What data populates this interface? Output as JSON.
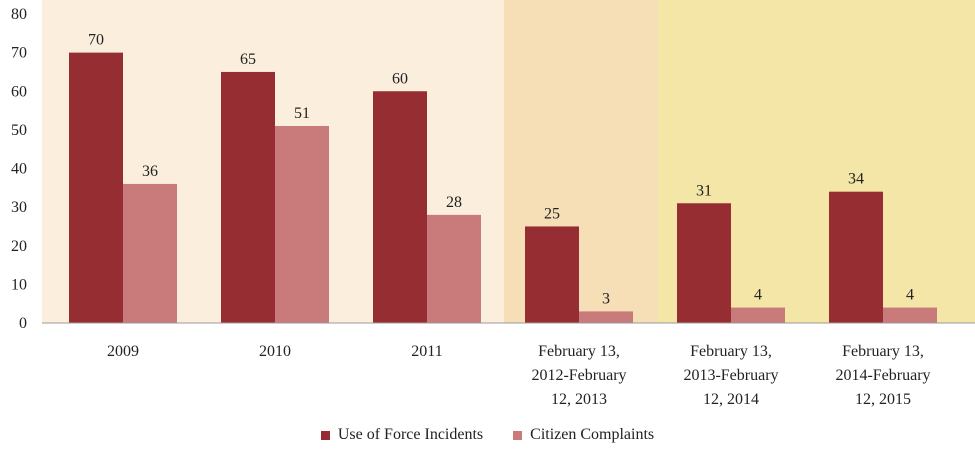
{
  "chart_data": {
    "type": "bar",
    "categories": [
      [
        "2009"
      ],
      [
        "2010"
      ],
      [
        "2011"
      ],
      [
        "February 13,",
        "2012-February",
        "12, 2013"
      ],
      [
        "February 13,",
        "2013-February",
        "12, 2014"
      ],
      [
        "February 13,",
        "2014-February",
        "12, 2015"
      ]
    ],
    "series": [
      {
        "name": "Use of Force Incidents",
        "values": [
          70,
          65,
          60,
          25,
          31,
          34
        ],
        "color": "#952d32"
      },
      {
        "name": "Citizen Complaints",
        "values": [
          36,
          51,
          28,
          3,
          4,
          4
        ],
        "color": "#c97b7c"
      }
    ],
    "ylim": [
      0,
      80
    ],
    "yticks": [
      0,
      10,
      20,
      30,
      40,
      50,
      60,
      70,
      80
    ],
    "legend_position": "bottom",
    "grid": false,
    "background_bands": [
      "#fbeedd",
      "#f6dfb6",
      "#f3e6a6"
    ]
  }
}
